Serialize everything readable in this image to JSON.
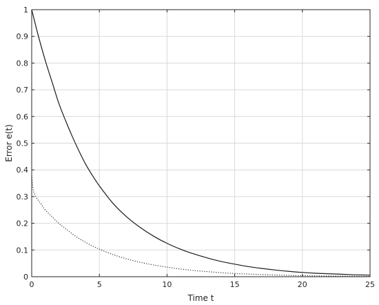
{
  "chart_data": {
    "type": "line",
    "title": "",
    "xlabel": "Time t",
    "ylabel": "Error e(t)",
    "xlim": [
      0,
      25
    ],
    "ylim": [
      0,
      1
    ],
    "x_ticks": [
      0,
      5,
      10,
      15,
      20,
      25
    ],
    "y_ticks": [
      0,
      0.1,
      0.2,
      0.3,
      0.4,
      0.5,
      0.6,
      0.7,
      0.8,
      0.9,
      1
    ],
    "x_tick_labels": [
      "0",
      "5",
      "10",
      "15",
      "20",
      "25"
    ],
    "y_tick_labels": [
      "0",
      "0.1",
      "0.2",
      "0.3",
      "0.4",
      "0.5",
      "0.6",
      "0.7",
      "0.8",
      "0.9",
      "1"
    ],
    "grid": true,
    "legend": false,
    "series": [
      {
        "style": "solid",
        "color": "#1a1a1a",
        "x": [
          0,
          0.5,
          1,
          1.5,
          2,
          2.5,
          3,
          3.5,
          4,
          4.5,
          5,
          6,
          7,
          8,
          9,
          10,
          11,
          12,
          13,
          14,
          15,
          16,
          17,
          18,
          19,
          20,
          21,
          22,
          23,
          24,
          25
        ],
        "y": [
          1.0,
          0.9,
          0.81,
          0.73,
          0.65,
          0.585,
          0.525,
          0.47,
          0.42,
          0.378,
          0.34,
          0.275,
          0.225,
          0.185,
          0.152,
          0.125,
          0.103,
          0.085,
          0.07,
          0.057,
          0.047,
          0.038,
          0.031,
          0.025,
          0.02,
          0.016,
          0.013,
          0.011,
          0.009,
          0.007,
          0.006
        ]
      },
      {
        "style": "dotted",
        "color": "#1a1a1a",
        "x": [
          0,
          0.1,
          0.25,
          0.5,
          0.75,
          1,
          1.5,
          2,
          2.5,
          3,
          3.5,
          4,
          4.5,
          5,
          6,
          7,
          8,
          9,
          10,
          11,
          12,
          13,
          14,
          15,
          16,
          17,
          18,
          19,
          20,
          21,
          22,
          23,
          24,
          25
        ],
        "y": [
          0.38,
          0.33,
          0.305,
          0.285,
          0.268,
          0.25,
          0.225,
          0.2,
          0.18,
          0.16,
          0.143,
          0.128,
          0.115,
          0.103,
          0.083,
          0.067,
          0.054,
          0.044,
          0.036,
          0.029,
          0.023,
          0.019,
          0.015,
          0.012,
          0.01,
          0.008,
          0.0065,
          0.005,
          0.004,
          0.0033,
          0.0026,
          0.002,
          0.0016,
          0.0012
        ]
      }
    ]
  }
}
